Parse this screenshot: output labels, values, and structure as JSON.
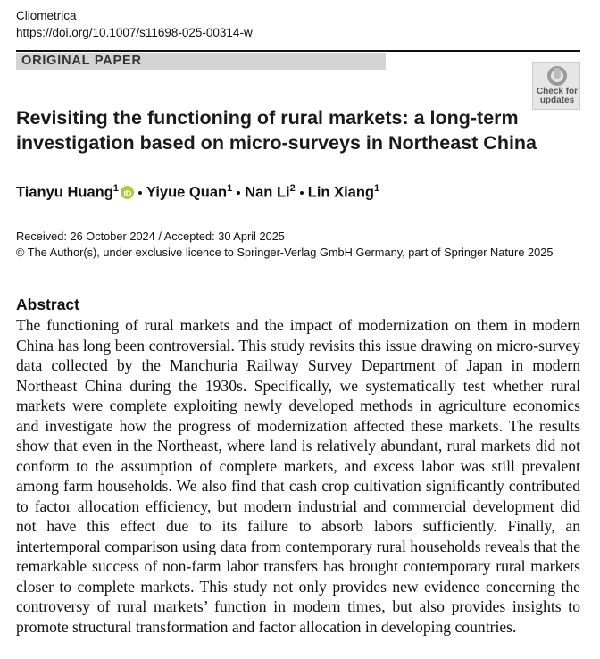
{
  "header": {
    "journal": "Cliometrica",
    "doi": "https://doi.org/10.1007/s11698-025-00314-w",
    "article_type": "ORIGINAL PAPER",
    "check_updates": "Check for updates"
  },
  "title": "Revisiting the functioning of rural markets: a long-term investigation based on micro-surveys in Northeast China",
  "authors": [
    {
      "name": "Tianyu Huang",
      "affiliation": "1"
    },
    {
      "name": "Yiyue Quan",
      "affiliation": "1"
    },
    {
      "name": "Nan Li",
      "affiliation": "2"
    },
    {
      "name": "Lin Xiang",
      "affiliation": "1"
    }
  ],
  "dates": "Received: 26 October 2024 / Accepted: 30 April 2025",
  "copyright": "© The Author(s), under exclusive licence to Springer-Verlag GmbH Germany, part of Springer Nature 2025",
  "abstract": {
    "heading": "Abstract",
    "text": "The functioning of rural markets and the impact of modernization on them in modern China has long been controversial. This study revisits this issue drawing on micro-survey data collected by the Manchuria Railway Survey Department of Japan in modern Northeast China during the 1930s. Specifically, we systematically test whether rural markets were complete exploiting newly developed methods in agriculture economics and investigate how the progress of modernization affected these markets. The results show that even in the Northeast, where land is relatively abundant, rural markets did not conform to the assumption of complete markets, and excess labor was still prevalent among farm households. We also find that cash crop cultivation significantly contributed to factor allocation efficiency, but modern industrial and commercial development did not have this effect due to its failure to absorb labors sufficiently. Finally, an intertemporal comparison using data from contemporary rural households reveals that the remarkable success of non-farm labor transfers has brought contemporary rural markets closer to complete markets. This study not only provides new evidence concerning the controversy of rural markets’ function in modern times, but also provides insights to promote structural transformation and factor allocation in developing countries."
  }
}
